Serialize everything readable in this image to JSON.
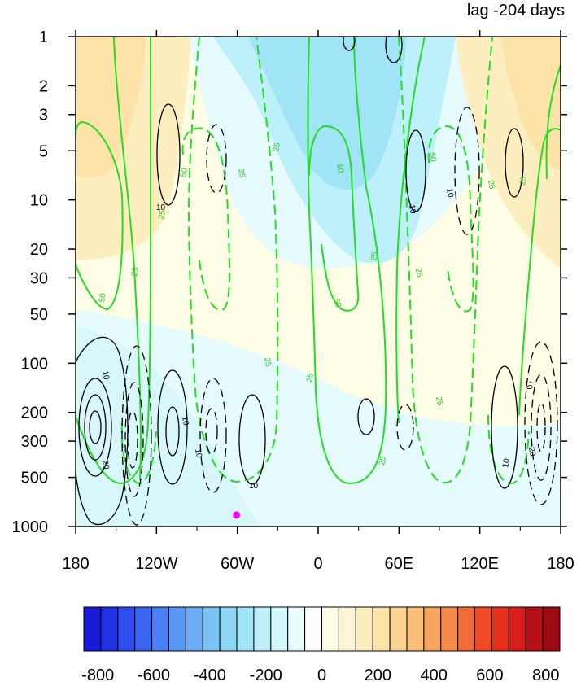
{
  "chart_data": {
    "type": "heatmap",
    "title": "lag -204 days",
    "x_tick_labels": [
      "180",
      "120W",
      "60W",
      "0",
      "60E",
      "120E",
      "180"
    ],
    "x_ticks_deg": [
      -180,
      -120,
      -60,
      0,
      60,
      120,
      180
    ],
    "xlim": [
      -180,
      180
    ],
    "y_tick_labels": [
      "1",
      "2",
      "3",
      "5",
      "10",
      "20",
      "30",
      "50",
      "100",
      "200",
      "300",
      "500",
      "1000"
    ],
    "y_ticks": [
      1,
      2,
      3,
      5,
      10,
      20,
      30,
      50,
      100,
      200,
      300,
      500,
      1000
    ],
    "ylim": [
      1,
      1000
    ],
    "y_scale": "log",
    "y_inverted": true,
    "colorbar": {
      "tick_labels": [
        "-800",
        "-600",
        "-400",
        "-200",
        "0",
        "200",
        "400",
        "600",
        "800"
      ],
      "min": -850,
      "max": 850,
      "step": 50,
      "colors": [
        "#1a1ad9",
        "#2233e6",
        "#2e4ef0",
        "#3a66f2",
        "#4a80f5",
        "#5a96f5",
        "#6badf5",
        "#7cc3f5",
        "#8cd6f5",
        "#a0e4f5",
        "#bdf0fa",
        "#d4f7fb",
        "#ebfcfd",
        "#ffffff",
        "#fefde6",
        "#fff5d4",
        "#fdeec0",
        "#fde3a8",
        "#fbd291",
        "#fbbe78",
        "#f8a560",
        "#f58a4a",
        "#f26c38",
        "#ef4a2a",
        "#e8301f",
        "#d91c1c",
        "#b81017",
        "#9c0a12"
      ]
    },
    "contour_labels_green": [
      "25",
      "50",
      "50",
      "25",
      "25",
      "25",
      "50",
      "25",
      "25",
      "25",
      "50",
      "25",
      "25",
      "25",
      "50",
      "25",
      "25"
    ],
    "contour_labels_black": [
      "10",
      "10",
      "10",
      "10",
      "20",
      "10",
      "10",
      "10",
      "10",
      "10",
      "20"
    ],
    "marker": {
      "lon": -60,
      "p": 850,
      "color": "#ff00ff"
    }
  }
}
